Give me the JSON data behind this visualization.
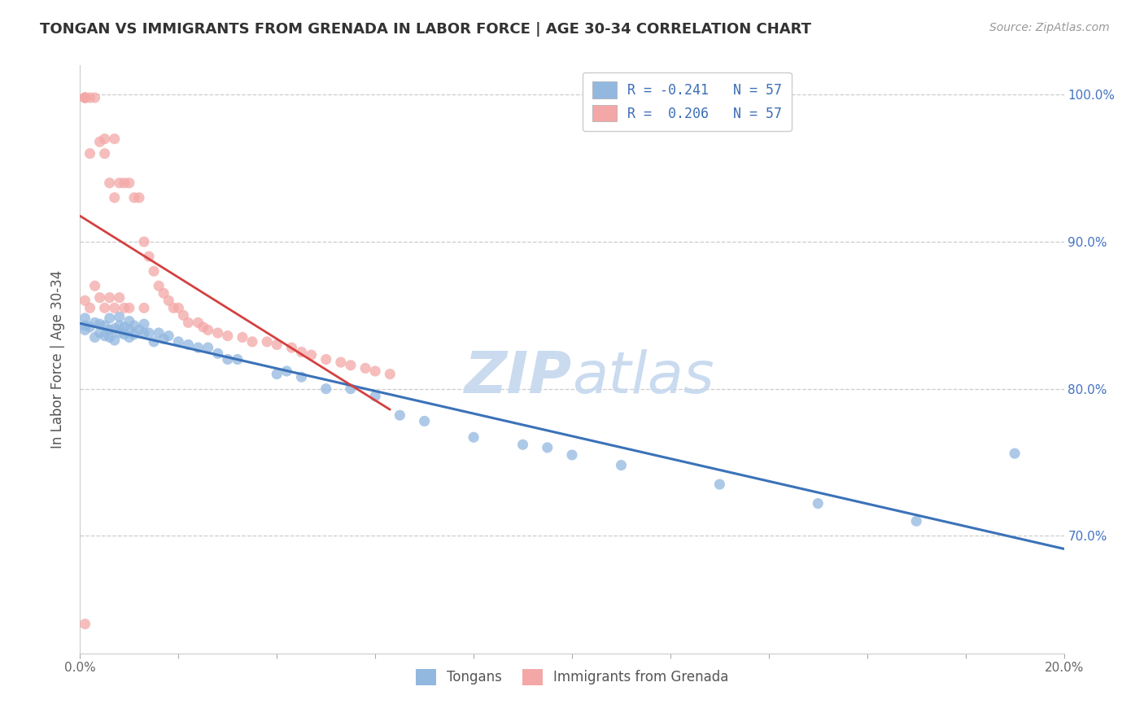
{
  "title": "TONGAN VS IMMIGRANTS FROM GRENADA IN LABOR FORCE | AGE 30-34 CORRELATION CHART",
  "source": "Source: ZipAtlas.com",
  "ylabel": "In Labor Force | Age 30-34",
  "xlim": [
    0.0,
    0.2
  ],
  "ylim": [
    0.62,
    1.02
  ],
  "xticks": [
    0.0,
    0.02,
    0.04,
    0.06,
    0.08,
    0.1,
    0.12,
    0.14,
    0.16,
    0.18,
    0.2
  ],
  "xtick_labels": [
    "0.0%",
    "",
    "",
    "",
    "",
    "",
    "",
    "",
    "",
    "",
    "20.0%"
  ],
  "yticks": [
    1.0,
    0.9,
    0.8,
    0.7
  ],
  "ytick_labels": [
    "100.0%",
    "90.0%",
    "80.0%",
    "70.0%"
  ],
  "legend_labels": [
    "Tongans",
    "Immigrants from Grenada"
  ],
  "blue_color": "#92b8e0",
  "pink_color": "#f4a7a7",
  "blue_line_color": "#3b72b8",
  "pink_line_color": "#d44040",
  "watermark_color": "#c5d8ef",
  "tongans_x": [
    0.001,
    0.001,
    0.001,
    0.002,
    0.003,
    0.003,
    0.004,
    0.004,
    0.005,
    0.005,
    0.006,
    0.006,
    0.006,
    0.007,
    0.007,
    0.008,
    0.008,
    0.008,
    0.009,
    0.009,
    0.01,
    0.01,
    0.01,
    0.011,
    0.011,
    0.012,
    0.013,
    0.013,
    0.014,
    0.015,
    0.016,
    0.017,
    0.018,
    0.02,
    0.022,
    0.024,
    0.026,
    0.028,
    0.03,
    0.032,
    0.04,
    0.042,
    0.045,
    0.05,
    0.055,
    0.06,
    0.065,
    0.07,
    0.08,
    0.09,
    0.095,
    0.1,
    0.11,
    0.13,
    0.15,
    0.17,
    0.19
  ],
  "tongans_y": [
    0.84,
    0.843,
    0.848,
    0.842,
    0.835,
    0.845,
    0.838,
    0.844,
    0.836,
    0.843,
    0.835,
    0.84,
    0.848,
    0.833,
    0.841,
    0.838,
    0.843,
    0.849,
    0.837,
    0.842,
    0.835,
    0.84,
    0.846,
    0.837,
    0.843,
    0.84,
    0.838,
    0.844,
    0.838,
    0.832,
    0.838,
    0.834,
    0.836,
    0.832,
    0.83,
    0.828,
    0.828,
    0.824,
    0.82,
    0.82,
    0.81,
    0.812,
    0.808,
    0.8,
    0.8,
    0.795,
    0.782,
    0.778,
    0.767,
    0.762,
    0.76,
    0.755,
    0.748,
    0.735,
    0.722,
    0.71,
    0.756
  ],
  "grenada_x": [
    0.001,
    0.001,
    0.001,
    0.001,
    0.001,
    0.002,
    0.002,
    0.002,
    0.003,
    0.003,
    0.004,
    0.004,
    0.005,
    0.005,
    0.005,
    0.006,
    0.006,
    0.007,
    0.007,
    0.007,
    0.008,
    0.008,
    0.009,
    0.009,
    0.01,
    0.01,
    0.011,
    0.012,
    0.013,
    0.013,
    0.014,
    0.015,
    0.016,
    0.017,
    0.018,
    0.019,
    0.02,
    0.021,
    0.022,
    0.024,
    0.025,
    0.026,
    0.028,
    0.03,
    0.033,
    0.035,
    0.038,
    0.04,
    0.043,
    0.045,
    0.047,
    0.05,
    0.053,
    0.055,
    0.058,
    0.06,
    0.063
  ],
  "grenada_y": [
    0.998,
    0.998,
    0.998,
    0.86,
    0.64,
    0.998,
    0.96,
    0.855,
    0.998,
    0.87,
    0.968,
    0.862,
    0.97,
    0.96,
    0.855,
    0.94,
    0.862,
    0.97,
    0.93,
    0.855,
    0.94,
    0.862,
    0.94,
    0.855,
    0.94,
    0.855,
    0.93,
    0.93,
    0.9,
    0.855,
    0.89,
    0.88,
    0.87,
    0.865,
    0.86,
    0.855,
    0.855,
    0.85,
    0.845,
    0.845,
    0.842,
    0.84,
    0.838,
    0.836,
    0.835,
    0.832,
    0.832,
    0.83,
    0.828,
    0.825,
    0.823,
    0.82,
    0.818,
    0.816,
    0.814,
    0.812,
    0.81
  ]
}
